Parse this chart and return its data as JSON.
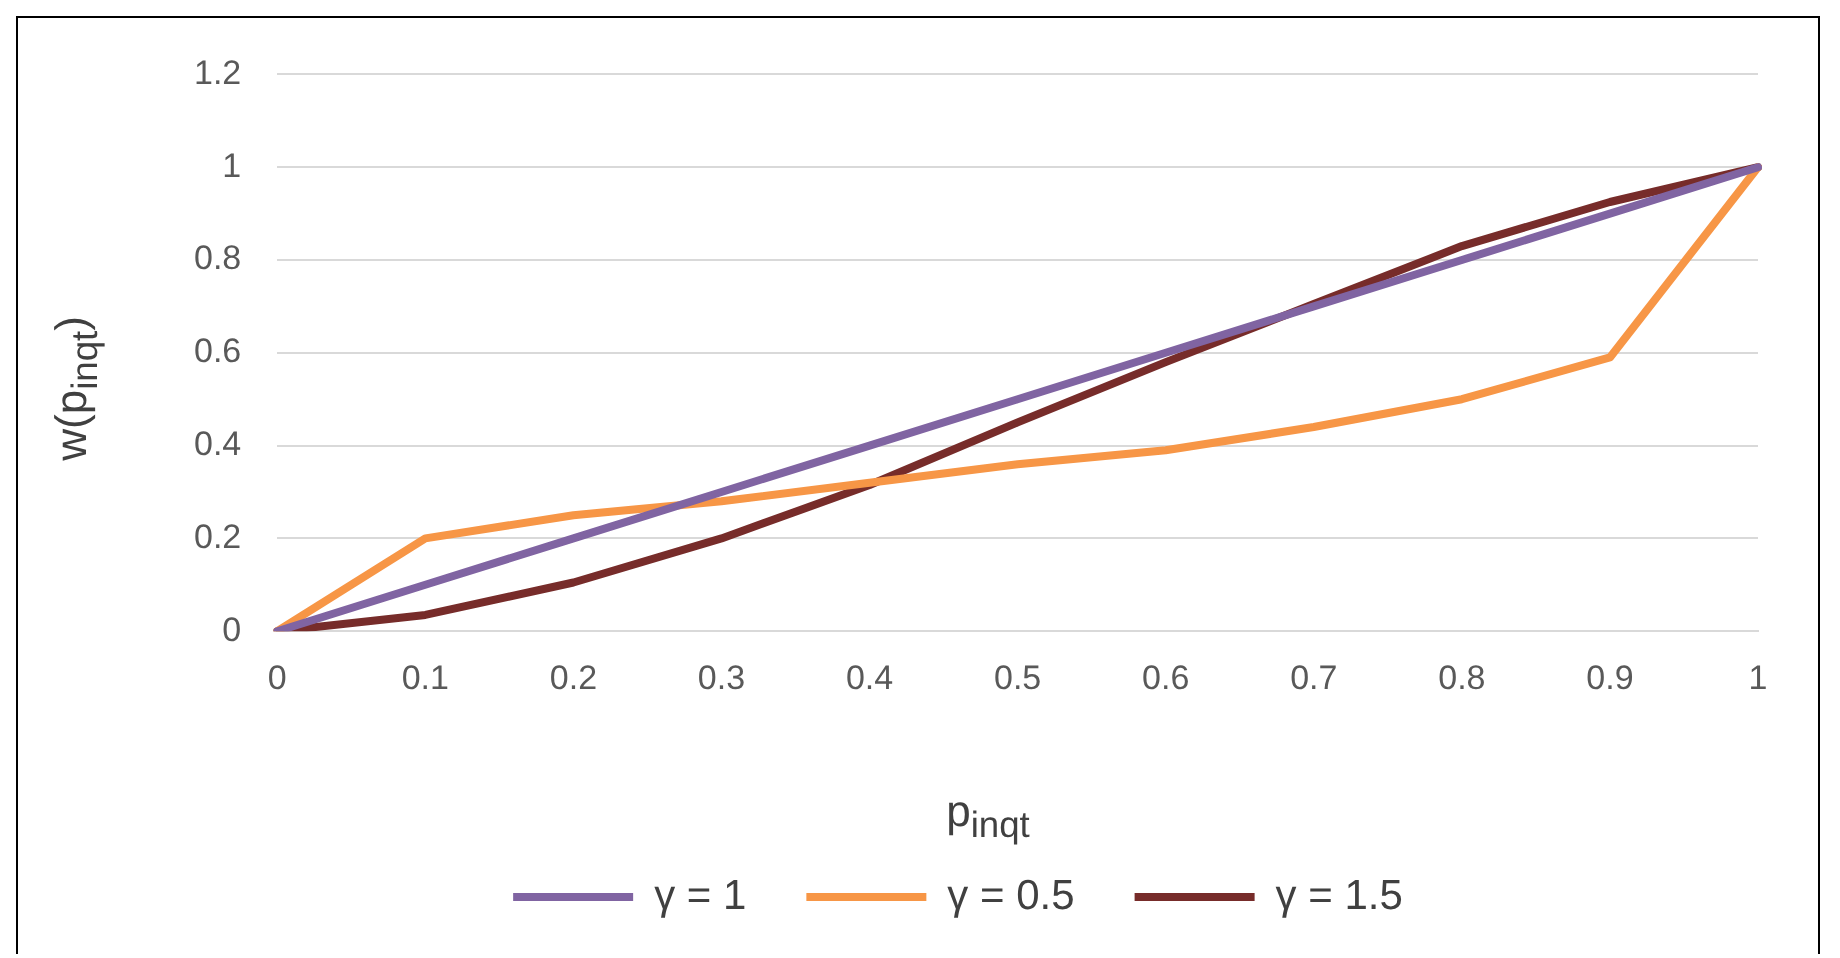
{
  "chart_data": {
    "type": "line",
    "xlabel": "p$_{inqt}$",
    "ylabel": "w(p$_{inqt}$)",
    "categories": [
      "0",
      "0.1",
      "0.2",
      "0.3",
      "0.4",
      "0.5",
      "0.6",
      "0.7",
      "0.8",
      "0.9",
      "1"
    ],
    "series": [
      {
        "name": "γ = 1",
        "color": "#8064a2",
        "values": [
          0,
          0.1,
          0.2,
          0.3,
          0.4,
          0.5,
          0.6,
          0.7,
          0.8,
          0.9,
          1
        ]
      },
      {
        "name": "γ = 0.5",
        "color": "#f79646",
        "values": [
          0,
          0.2,
          0.25,
          0.28,
          0.32,
          0.36,
          0.39,
          0.44,
          0.5,
          0.59,
          1
        ]
      },
      {
        "name": "γ = 1.5",
        "color": "#772c2a",
        "values": [
          0,
          0.035,
          0.105,
          0.2,
          0.315,
          0.45,
          0.58,
          0.705,
          0.83,
          0.925,
          1
        ]
      }
    ],
    "ylim": [
      0,
      1.2
    ],
    "yticks": [
      0,
      0.2,
      0.4,
      0.6,
      0.8,
      1,
      1.2
    ],
    "grid": "y",
    "legend": "bottom",
    "marker": "none",
    "line_style": "solid"
  }
}
